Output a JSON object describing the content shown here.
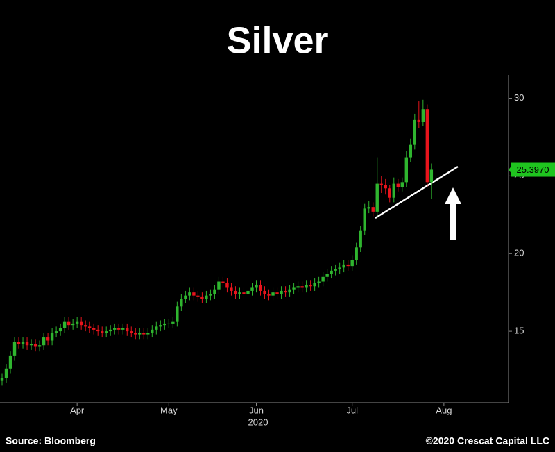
{
  "chart_data": {
    "type": "candlestick",
    "title": "Silver",
    "source": "Source: Bloomberg",
    "copyright": "©2020 Crescat Capital LLC",
    "year_label": "2020",
    "categories": [
      null,
      null,
      null,
      null,
      null,
      null,
      null,
      null,
      null,
      null,
      null,
      null,
      null,
      null,
      null,
      null,
      null,
      null,
      "Apr",
      null,
      null,
      null,
      null,
      null,
      null,
      null,
      null,
      null,
      null,
      null,
      null,
      null,
      null,
      null,
      null,
      null,
      null,
      null,
      null,
      null,
      "May",
      null,
      null,
      null,
      null,
      null,
      null,
      null,
      null,
      null,
      null,
      null,
      null,
      null,
      null,
      null,
      null,
      null,
      null,
      null,
      null,
      "Jun",
      null,
      null,
      null,
      null,
      null,
      null,
      null,
      null,
      null,
      null,
      null,
      null,
      null,
      null,
      null,
      null,
      null,
      null,
      null,
      null,
      null,
      null,
      "Jul",
      null,
      null,
      null,
      null,
      null,
      null,
      null,
      null,
      null,
      null,
      null,
      null,
      null,
      null,
      null,
      null,
      null,
      null,
      null,
      null,
      null,
      "Aug",
      null,
      null,
      null,
      null,
      null,
      null,
      null,
      null,
      null,
      null,
      null,
      null,
      null,
      null,
      null
    ],
    "open": [
      11.8,
      12.0,
      12.6,
      13.4,
      14.3,
      14.2,
      14.3,
      14.1,
      14.2,
      14.0,
      14.1,
      14.6,
      14.4,
      14.9,
      15.0,
      15.2,
      15.6,
      15.4,
      15.5,
      15.6,
      15.4,
      15.3,
      15.2,
      15.1,
      15.0,
      14.9,
      15.0,
      15.1,
      15.2,
      15.1,
      15.2,
      15.0,
      14.9,
      14.8,
      14.9,
      14.8,
      14.9,
      15.1,
      15.3,
      15.4,
      15.5,
      15.5,
      15.6,
      16.6,
      17.1,
      17.3,
      17.5,
      17.3,
      17.2,
      17.1,
      17.3,
      17.4,
      17.7,
      18.2,
      18.1,
      17.8,
      17.6,
      17.4,
      17.5,
      17.4,
      17.6,
      17.8,
      18.0,
      17.6,
      17.4,
      17.3,
      17.5,
      17.4,
      17.6,
      17.5,
      17.7,
      17.8,
      17.9,
      17.8,
      18.0,
      17.9,
      18.1,
      18.2,
      18.5,
      18.7,
      18.9,
      19.0,
      19.1,
      19.3,
      19.2,
      19.6,
      20.4,
      21.5,
      22.9,
      23.0,
      22.7,
      24.5,
      24.4,
      24.2,
      23.6,
      24.5,
      24.3,
      24.6,
      26.2,
      27.0,
      28.6,
      28.5,
      29.3,
      24.6,
      null,
      null,
      null,
      null,
      null,
      null,
      null,
      null,
      null,
      null,
      null,
      null,
      null,
      null,
      null,
      null,
      null,
      null
    ],
    "high": [
      12.3,
      12.9,
      13.7,
      14.6,
      14.6,
      14.6,
      14.6,
      14.5,
      14.5,
      14.4,
      14.9,
      14.9,
      15.2,
      15.3,
      15.5,
      15.9,
      15.9,
      15.8,
      15.9,
      15.9,
      15.7,
      15.6,
      15.5,
      15.4,
      15.3,
      15.3,
      15.4,
      15.5,
      15.5,
      15.5,
      15.5,
      15.3,
      15.2,
      15.2,
      15.2,
      15.2,
      15.4,
      15.6,
      15.7,
      15.8,
      15.8,
      15.9,
      16.9,
      17.4,
      17.6,
      17.8,
      17.8,
      17.6,
      17.5,
      17.6,
      17.7,
      18.0,
      18.5,
      18.5,
      18.4,
      18.1,
      17.9,
      17.8,
      17.8,
      17.9,
      18.1,
      18.3,
      18.3,
      17.9,
      17.7,
      17.8,
      17.8,
      17.9,
      17.9,
      18.0,
      18.1,
      18.2,
      18.2,
      18.3,
      18.3,
      18.4,
      18.5,
      18.8,
      19.0,
      19.2,
      19.3,
      19.4,
      19.6,
      19.6,
      19.9,
      20.7,
      21.8,
      23.2,
      23.4,
      23.3,
      26.2,
      25.0,
      24.8,
      24.4,
      24.9,
      24.8,
      24.9,
      26.6,
      27.4,
      29.0,
      29.8,
      29.9,
      29.6,
      25.8,
      null,
      null,
      null,
      null,
      null,
      null,
      null,
      null,
      null,
      null,
      null,
      null,
      null,
      null,
      null,
      null,
      null,
      null
    ],
    "low": [
      11.5,
      11.7,
      12.3,
      13.1,
      13.9,
      13.9,
      13.8,
      13.8,
      13.7,
      13.7,
      13.8,
      14.1,
      14.1,
      14.6,
      14.7,
      14.9,
      15.1,
      15.1,
      15.2,
      15.1,
      15.0,
      14.9,
      14.8,
      14.7,
      14.6,
      14.6,
      14.7,
      14.8,
      14.8,
      14.8,
      14.7,
      14.6,
      14.5,
      14.5,
      14.5,
      14.5,
      14.6,
      14.8,
      15.0,
      15.1,
      15.2,
      15.2,
      15.3,
      16.3,
      16.8,
      17.0,
      17.0,
      16.9,
      16.8,
      16.8,
      17.0,
      17.1,
      17.4,
      17.8,
      17.5,
      17.3,
      17.1,
      17.1,
      17.1,
      17.1,
      17.3,
      17.5,
      17.3,
      17.1,
      17.0,
      17.0,
      17.1,
      17.1,
      17.2,
      17.2,
      17.4,
      17.5,
      17.5,
      17.5,
      17.6,
      17.6,
      17.8,
      17.9,
      18.2,
      18.4,
      18.6,
      18.7,
      18.8,
      18.9,
      18.9,
      19.3,
      20.1,
      21.2,
      22.6,
      22.4,
      22.4,
      23.9,
      23.8,
      23.3,
      23.3,
      24.0,
      24.0,
      24.3,
      25.9,
      26.7,
      28.1,
      28.2,
      24.3,
      23.5,
      null,
      null,
      null,
      null,
      null,
      null,
      null,
      null,
      null,
      null,
      null,
      null,
      null,
      null,
      null,
      null,
      null,
      null
    ],
    "close": [
      12.0,
      12.6,
      13.4,
      14.3,
      14.2,
      14.3,
      14.1,
      14.2,
      14.0,
      14.1,
      14.6,
      14.4,
      14.9,
      15.0,
      15.2,
      15.6,
      15.4,
      15.5,
      15.6,
      15.4,
      15.3,
      15.2,
      15.1,
      15.0,
      14.9,
      15.0,
      15.1,
      15.2,
      15.1,
      15.2,
      15.0,
      14.9,
      14.8,
      14.9,
      14.8,
      14.9,
      15.1,
      15.3,
      15.4,
      15.5,
      15.5,
      15.6,
      16.6,
      17.1,
      17.3,
      17.5,
      17.3,
      17.2,
      17.1,
      17.3,
      17.4,
      17.7,
      18.2,
      18.1,
      17.8,
      17.6,
      17.4,
      17.5,
      17.4,
      17.6,
      17.8,
      18.0,
      17.6,
      17.4,
      17.3,
      17.5,
      17.4,
      17.6,
      17.5,
      17.7,
      17.8,
      17.9,
      17.8,
      18.0,
      17.9,
      18.1,
      18.2,
      18.5,
      18.7,
      18.9,
      19.0,
      19.1,
      19.3,
      19.2,
      19.6,
      20.4,
      21.5,
      22.9,
      23.0,
      22.7,
      24.5,
      24.4,
      24.2,
      23.6,
      24.5,
      24.3,
      24.6,
      26.2,
      27.0,
      28.6,
      28.5,
      29.3,
      24.6,
      25.4,
      null,
      null,
      null,
      null,
      null,
      null,
      null,
      null,
      null,
      null,
      null,
      null,
      null,
      null,
      null,
      null,
      null,
      null
    ],
    "up_color": "#2fb52f",
    "down_color": "#e8141c",
    "last_price": 25.397,
    "last_price_label": "25.3970",
    "last_price_color": "#1fc41f",
    "ylim": [
      10.4,
      31.5
    ],
    "yticks": [
      15,
      20,
      25,
      30
    ]
  }
}
